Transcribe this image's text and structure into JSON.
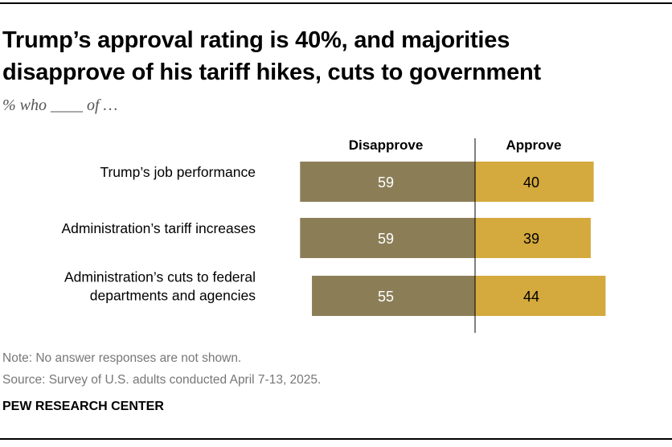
{
  "header": {
    "title_line1": "Trump’s approval rating is 40%, and majorities",
    "title_line2": "disapprove of his tariff hikes, cuts to government",
    "subtitle": "% who ____ of …"
  },
  "footer": {
    "note": "Note: No answer responses are not shown.",
    "source": "Source: Survey of U.S. adults conducted April 7-13, 2025.",
    "brand": "PEW RESEARCH CENTER"
  },
  "colors": {
    "disapprove": "#8b7e57",
    "approve": "#d4a93d",
    "disapprove_label": "#ffffff",
    "approve_label": "#000000"
  },
  "chart_data": {
    "type": "bar",
    "orientation": "horizontal-diverging",
    "title": "Trump’s approval rating is 40%, and majorities disapprove of his tariff hikes, cuts to government",
    "subtitle": "% who ____ of …",
    "categories": [
      [
        "Trump’s job performance"
      ],
      [
        "Administration’s tariff increases"
      ],
      [
        "Administration’s cuts to federal",
        "departments and agencies"
      ]
    ],
    "series": [
      {
        "name": "Disapprove",
        "values": [
          59,
          59,
          55
        ]
      },
      {
        "name": "Approve",
        "values": [
          40,
          39,
          44
        ]
      }
    ],
    "xlim": [
      0,
      100
    ],
    "grid": false,
    "legend": "top"
  }
}
